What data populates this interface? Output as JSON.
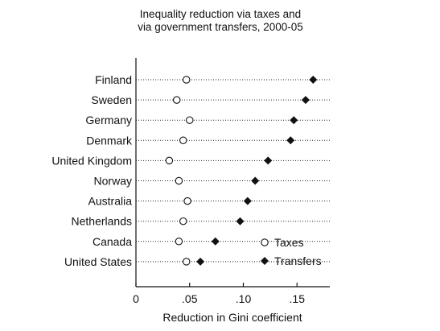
{
  "chart_data": {
    "type": "scatter",
    "title": [
      "Inequality reduction via taxes and",
      "via government transfers, 2000-05"
    ],
    "xlabel": "Reduction in Gini coefficient",
    "ylabel": "",
    "xlim": [
      0,
      0.175
    ],
    "xticks": [
      0,
      0.05,
      0.1,
      0.15
    ],
    "xtick_labels": [
      "0",
      ".05",
      ".10",
      ".15"
    ],
    "grid": false,
    "legend_position": "bottom-right",
    "categories": [
      "Finland",
      "Sweden",
      "Germany",
      "Denmark",
      "United Kingdom",
      "Norway",
      "Australia",
      "Netherlands",
      "Canada",
      "United States"
    ],
    "series": [
      {
        "name": "Taxes",
        "marker": "open-circle",
        "values": [
          0.047,
          0.038,
          0.05,
          0.044,
          0.031,
          0.04,
          0.048,
          0.044,
          0.04,
          0.047
        ]
      },
      {
        "name": "Transfers",
        "marker": "filled-diamond",
        "values": [
          0.165,
          0.158,
          0.147,
          0.144,
          0.123,
          0.111,
          0.104,
          0.097,
          0.074,
          0.06
        ]
      }
    ]
  }
}
